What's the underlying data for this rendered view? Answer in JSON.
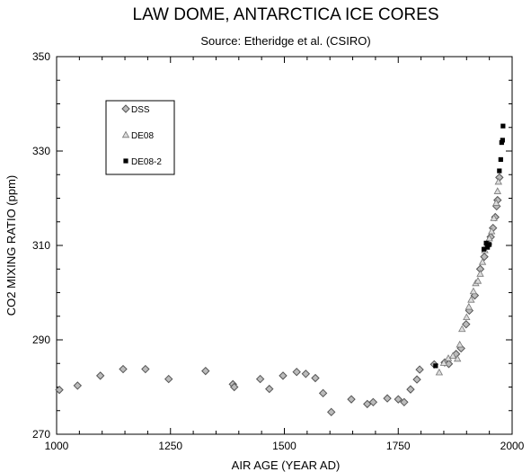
{
  "chart_data": {
    "type": "scatter",
    "title": "LAW DOME, ANTARCTICA ICE CORES",
    "subtitle": "Source:  Etheridge et al. (CSIRO)",
    "xlabel": "AIR AGE  (YEAR AD)",
    "ylabel": "CO2 MIXING RATIO  (ppm)",
    "xlim": [
      1000,
      2000
    ],
    "ylim": [
      270,
      350
    ],
    "xticks": [
      1000,
      1250,
      1500,
      1750,
      2000
    ],
    "yticks": [
      270,
      290,
      310,
      330,
      350
    ],
    "grid": false,
    "legend_position": "top-left",
    "series": [
      {
        "name": "DSS",
        "marker": "diamond",
        "color": "#555555",
        "points": [
          [
            1006,
            279.4
          ],
          [
            1046,
            280.3
          ],
          [
            1096,
            282.4
          ],
          [
            1146,
            283.8
          ],
          [
            1195,
            283.8
          ],
          [
            1246,
            281.7
          ],
          [
            1327,
            283.4
          ],
          [
            1387,
            280.6
          ],
          [
            1390,
            280.0
          ],
          [
            1447,
            281.7
          ],
          [
            1467,
            279.6
          ],
          [
            1497,
            282.4
          ],
          [
            1527,
            283.2
          ],
          [
            1547,
            282.8
          ],
          [
            1568,
            281.9
          ],
          [
            1585,
            278.7
          ],
          [
            1603,
            274.7
          ],
          [
            1647,
            277.4
          ],
          [
            1682,
            276.4
          ],
          [
            1695,
            276.8
          ],
          [
            1726,
            277.6
          ],
          [
            1750,
            277.4
          ],
          [
            1763,
            276.8
          ],
          [
            1777,
            279.5
          ],
          [
            1791,
            281.6
          ],
          [
            1797,
            283.7
          ],
          [
            1829,
            284.8
          ],
          [
            1852,
            285.2
          ],
          [
            1861,
            284.9
          ],
          [
            1877,
            287.0
          ],
          [
            1888,
            288.2
          ],
          [
            1899,
            293.3
          ],
          [
            1906,
            296.2
          ],
          [
            1918,
            299.4
          ],
          [
            1930,
            305.0
          ],
          [
            1939,
            307.6
          ],
          [
            1947,
            310.3
          ],
          [
            1953,
            311.8
          ],
          [
            1958,
            313.7
          ],
          [
            1963,
            316.0
          ],
          [
            1966,
            318.3
          ],
          [
            1968,
            319.6
          ],
          [
            1972,
            324.4
          ]
        ]
      },
      {
        "name": "DE08",
        "marker": "triangle",
        "color": "#777777",
        "points": [
          [
            1840,
            283.1
          ],
          [
            1850,
            285.1
          ],
          [
            1860,
            286.1
          ],
          [
            1870,
            286.6
          ],
          [
            1880,
            286.0
          ],
          [
            1885,
            289.0
          ],
          [
            1890,
            292.3
          ],
          [
            1900,
            294.8
          ],
          [
            1905,
            297.0
          ],
          [
            1910,
            298.5
          ],
          [
            1915,
            300.3
          ],
          [
            1920,
            302.0
          ],
          [
            1925,
            302.5
          ],
          [
            1930,
            304.0
          ],
          [
            1935,
            306.5
          ],
          [
            1940,
            309.0
          ],
          [
            1945,
            310.2
          ],
          [
            1950,
            311.5
          ],
          [
            1955,
            313.0
          ],
          [
            1960,
            315.8
          ],
          [
            1965,
            319.0
          ],
          [
            1968,
            321.5
          ],
          [
            1970,
            323.5
          ]
        ]
      },
      {
        "name": "DE08-2",
        "marker": "square",
        "color": "#000000",
        "points": [
          [
            1832,
            284.5
          ],
          [
            1938,
            309.2
          ],
          [
            1943,
            310.5
          ],
          [
            1946,
            309.6
          ],
          [
            1950,
            310.2
          ],
          [
            1972,
            325.8
          ],
          [
            1975,
            328.2
          ],
          [
            1977,
            331.8
          ],
          [
            1979,
            332.3
          ],
          [
            1980,
            335.3
          ]
        ]
      }
    ]
  }
}
